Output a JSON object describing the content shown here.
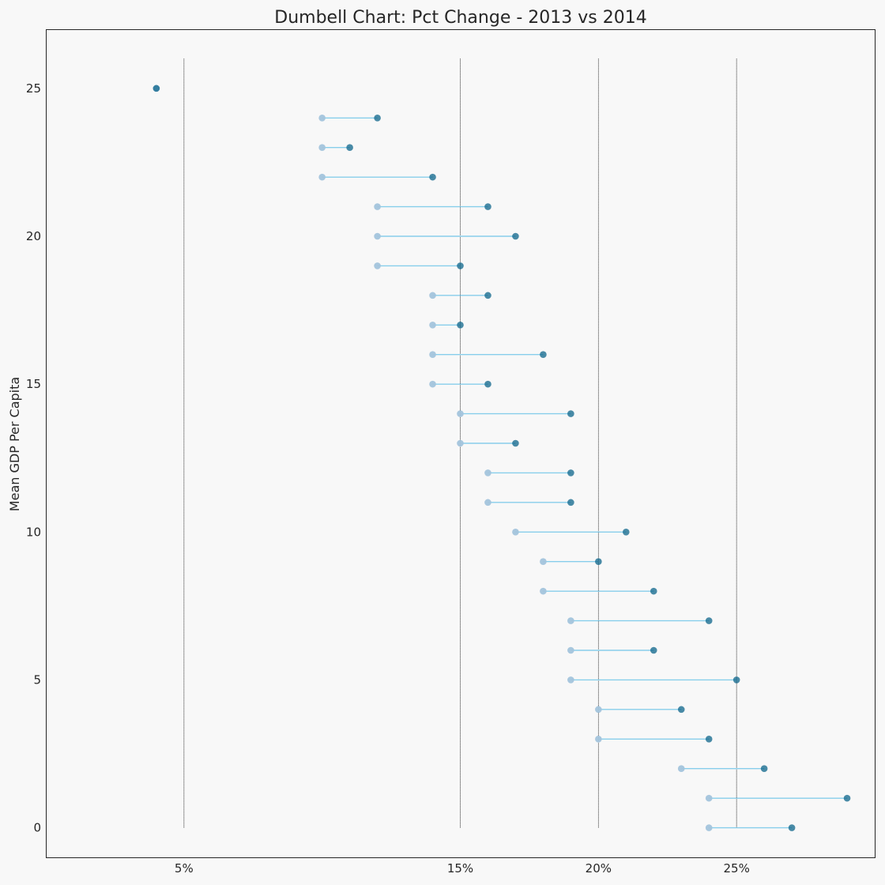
{
  "chart_data": {
    "type": "dumbbell",
    "title": "Dumbell Chart: Pct Change - 2013 vs 2014",
    "xlabel": "",
    "ylabel": "Mean GDP Per Capita",
    "xlim": [
      0,
      0.3
    ],
    "ylim": [
      -1,
      27
    ],
    "x_tick_values": [
      0.05,
      0.15,
      0.2,
      0.25
    ],
    "x_tick_labels": [
      "5%",
      "15%",
      "20%",
      "25%"
    ],
    "y_tick_values": [
      0,
      5,
      10,
      15,
      20,
      25
    ],
    "y_tick_labels": [
      "0",
      "5",
      "10",
      "15",
      "20",
      "25"
    ],
    "reference_lines_x": [
      0.05,
      0.15,
      0.2,
      0.25
    ],
    "grid": false,
    "colors": {
      "pct_2013": "#a3c4dc",
      "pct_2014": "#0e668b",
      "connector": "skyblue",
      "reference_line": "#000000",
      "background": "#f8f8f8",
      "frame": "#262626"
    },
    "points": [
      {
        "y": 0,
        "pct_2013": 0.24,
        "pct_2014": 0.27
      },
      {
        "y": 1,
        "pct_2013": 0.24,
        "pct_2014": 0.29
      },
      {
        "y": 2,
        "pct_2013": 0.23,
        "pct_2014": 0.26
      },
      {
        "y": 3,
        "pct_2013": 0.2,
        "pct_2014": 0.24
      },
      {
        "y": 4,
        "pct_2013": 0.2,
        "pct_2014": 0.23
      },
      {
        "y": 5,
        "pct_2013": 0.19,
        "pct_2014": 0.25
      },
      {
        "y": 6,
        "pct_2013": 0.19,
        "pct_2014": 0.22
      },
      {
        "y": 7,
        "pct_2013": 0.19,
        "pct_2014": 0.24
      },
      {
        "y": 8,
        "pct_2013": 0.18,
        "pct_2014": 0.22
      },
      {
        "y": 9,
        "pct_2013": 0.18,
        "pct_2014": 0.2
      },
      {
        "y": 10,
        "pct_2013": 0.17,
        "pct_2014": 0.21
      },
      {
        "y": 11,
        "pct_2013": 0.16,
        "pct_2014": 0.19
      },
      {
        "y": 12,
        "pct_2013": 0.16,
        "pct_2014": 0.19
      },
      {
        "y": 13,
        "pct_2013": 0.15,
        "pct_2014": 0.17
      },
      {
        "y": 14,
        "pct_2013": 0.15,
        "pct_2014": 0.19
      },
      {
        "y": 15,
        "pct_2013": 0.14,
        "pct_2014": 0.16
      },
      {
        "y": 16,
        "pct_2013": 0.14,
        "pct_2014": 0.18
      },
      {
        "y": 17,
        "pct_2013": 0.14,
        "pct_2014": 0.15
      },
      {
        "y": 18,
        "pct_2013": 0.14,
        "pct_2014": 0.16
      },
      {
        "y": 19,
        "pct_2013": 0.12,
        "pct_2014": 0.15
      },
      {
        "y": 20,
        "pct_2013": 0.12,
        "pct_2014": 0.17
      },
      {
        "y": 21,
        "pct_2013": 0.12,
        "pct_2014": 0.16
      },
      {
        "y": 22,
        "pct_2013": 0.1,
        "pct_2014": 0.14
      },
      {
        "y": 23,
        "pct_2013": 0.1,
        "pct_2014": 0.11
      },
      {
        "y": 24,
        "pct_2013": 0.1,
        "pct_2014": 0.12
      },
      {
        "y": 25,
        "pct_2013": 0.04,
        "pct_2014": 0.04
      }
    ]
  }
}
